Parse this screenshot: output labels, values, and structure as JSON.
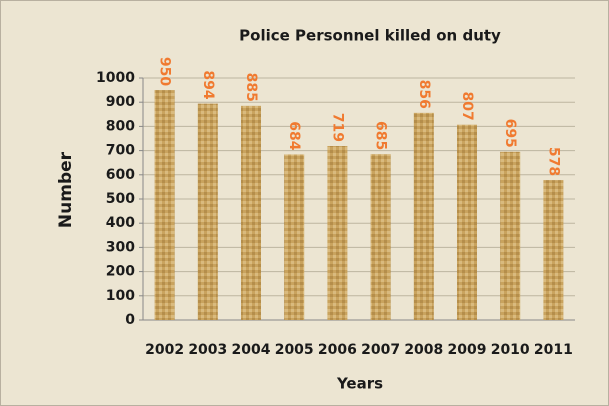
{
  "chart_data": {
    "type": "bar",
    "title": "Police Personnel killed on duty",
    "x_label": "Years",
    "y_label": "Number",
    "categories": [
      "2002",
      "2003",
      "2004",
      "2005",
      "2006",
      "2007",
      "2008",
      "2009",
      "2010",
      "2011"
    ],
    "values": [
      950,
      894,
      885,
      684,
      719,
      685,
      856,
      807,
      695,
      578
    ],
    "color": "#c9a35e",
    "ylim": [
      0,
      1000
    ],
    "yticks": [
      0,
      100,
      200,
      300,
      400,
      500,
      600,
      700,
      800,
      900,
      1000
    ],
    "grid": true
  }
}
